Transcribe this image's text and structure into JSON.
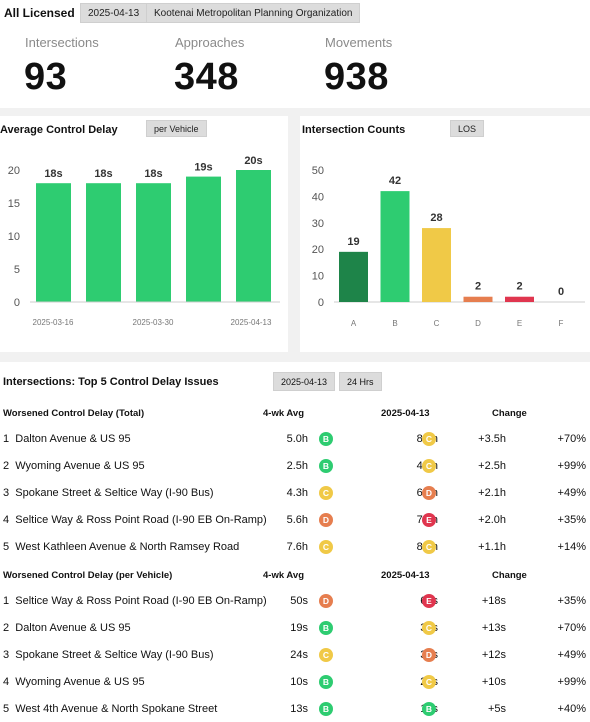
{
  "header": {
    "title": "All Licensed",
    "date_chip": "2025-04-13",
    "org_chip": "Kootenai Metropolitan Planning Organization",
    "kpis": [
      {
        "label": "Intersections",
        "value": "93"
      },
      {
        "label": "Approaches",
        "value": "348"
      },
      {
        "label": "Movements",
        "value": "938"
      }
    ]
  },
  "delay_panel": {
    "title": "Average Control Delay",
    "chip": "per Vehicle"
  },
  "count_panel": {
    "title": "Intersection Counts",
    "chip": "LOS"
  },
  "chart_data": [
    {
      "type": "bar",
      "title": "Average Control Delay",
      "values": [
        18,
        18,
        18,
        19,
        20
      ],
      "data_labels": [
        "18s",
        "18s",
        "18s",
        "19s",
        "20s"
      ],
      "x_tick_labels": [
        "2025-03-16",
        "2025-03-30",
        "2025-04-13"
      ],
      "y_ticks": [
        "0",
        "5",
        "10",
        "15",
        "20"
      ],
      "ylim": [
        0,
        23
      ],
      "grid": false,
      "color": "#2ecc71"
    },
    {
      "type": "bar",
      "title": "Intersection Counts",
      "categories": [
        "A",
        "B",
        "C",
        "D",
        "E",
        "F"
      ],
      "values": [
        19,
        42,
        28,
        2,
        2,
        0
      ],
      "colors": [
        "#1e8449",
        "#2ecc71",
        "#f0c947",
        "#e67e4f",
        "#e0364f",
        "#999999"
      ],
      "y_ticks": [
        "0",
        "10",
        "20",
        "30",
        "40",
        "50"
      ],
      "ylim": [
        0,
        50
      ],
      "grid": false
    }
  ],
  "issues": {
    "title": "Intersections: Top 5 Control Delay Issues",
    "date_chip": "2025-04-13",
    "period_chip": "24 Hrs",
    "colors": {
      "A": "#1e8449",
      "B": "#2ecc71",
      "C": "#f0c947",
      "D": "#e67e4f",
      "E": "#e0364f",
      "F": "#999999"
    },
    "sections": [
      {
        "header": {
          "name": "Worsened Control Delay (Total)",
          "avg": "4-wk Avg",
          "current": "2025-04-13",
          "change": "Change"
        },
        "rows": [
          {
            "rank": "1",
            "name": "Dalton Avenue & US 95",
            "avg": "5.0h",
            "avg_los": "B",
            "current": "8.5h",
            "cur_los": "C",
            "change": "+3.5h",
            "pct": "+70%"
          },
          {
            "rank": "2",
            "name": "Wyoming Avenue & US 95",
            "avg": "2.5h",
            "avg_los": "B",
            "current": "4.9h",
            "cur_los": "C",
            "change": "+2.5h",
            "pct": "+99%"
          },
          {
            "rank": "3",
            "name": "Spokane Street & Seltice Way (I-90 Bus)",
            "avg": "4.3h",
            "avg_los": "C",
            "current": "6.4h",
            "cur_los": "D",
            "change": "+2.1h",
            "pct": "+49%"
          },
          {
            "rank": "4",
            "name": "Seltice Way & Ross Point Road (I-90 EB On-Ramp)",
            "avg": "5.6h",
            "avg_los": "D",
            "current": "7.5h",
            "cur_los": "E",
            "change": "+2.0h",
            "pct": "+35%"
          },
          {
            "rank": "5",
            "name": "West Kathleen Avenue & North Ramsey Road",
            "avg": "7.6h",
            "avg_los": "C",
            "current": "8.7h",
            "cur_los": "C",
            "change": "+1.1h",
            "pct": "+14%"
          }
        ]
      },
      {
        "header": {
          "name": "Worsened Control Delay (per Vehicle)",
          "avg": "4-wk Avg",
          "current": "2025-04-13",
          "change": "Change"
        },
        "rows": [
          {
            "rank": "1",
            "name": "Seltice Way & Ross Point Road (I-90 EB On-Ramp)",
            "avg": "50s",
            "avg_los": "D",
            "current": "68s",
            "cur_los": "E",
            "change": "+18s",
            "pct": "+35%"
          },
          {
            "rank": "2",
            "name": "Dalton Avenue & US 95",
            "avg": "19s",
            "avg_los": "B",
            "current": "32s",
            "cur_los": "C",
            "change": "+13s",
            "pct": "+70%"
          },
          {
            "rank": "3",
            "name": "Spokane Street & Seltice Way (I-90 Bus)",
            "avg": "24s",
            "avg_los": "C",
            "current": "36s",
            "cur_los": "D",
            "change": "+12s",
            "pct": "+49%"
          },
          {
            "rank": "4",
            "name": "Wyoming Avenue & US 95",
            "avg": "10s",
            "avg_los": "B",
            "current": "20s",
            "cur_los": "C",
            "change": "+10s",
            "pct": "+99%"
          },
          {
            "rank": "5",
            "name": "West 4th Avenue & North Spokane Street",
            "avg": "13s",
            "avg_los": "B",
            "current": "18s",
            "cur_los": "B",
            "change": "+5s",
            "pct": "+40%"
          }
        ]
      }
    ]
  }
}
